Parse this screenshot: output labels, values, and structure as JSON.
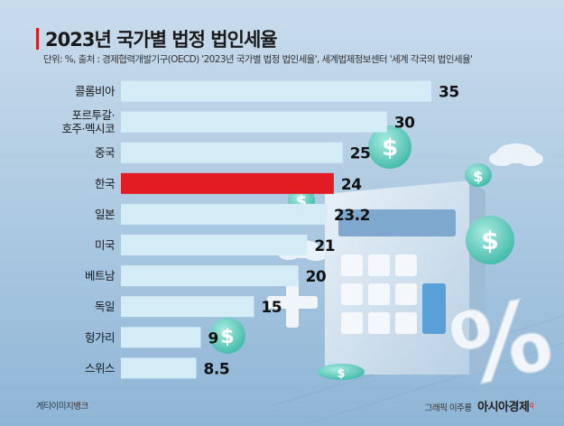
{
  "header": {
    "title": "2023년 국가별 법정 법인세율",
    "source": "단위: %, 출처 : 경제협력개발기구(OECD) '2023년 국가별 법정 법인세율', 세계법제정보센터 '세계 각국의 법인세율'"
  },
  "chart_data": {
    "type": "bar",
    "orientation": "horizontal",
    "title": "2023년 국가별 법정 법인세율",
    "unit": "%",
    "categories": [
      [
        "콜롬비아"
      ],
      [
        "포르투갈·",
        "호주·멕시코"
      ],
      [
        "중국"
      ],
      [
        "한국"
      ],
      [
        "일본"
      ],
      [
        "미국"
      ],
      [
        "베트남"
      ],
      [
        "독일"
      ],
      [
        "헝가리"
      ],
      [
        "스위스"
      ]
    ],
    "values": [
      35,
      30,
      25,
      24,
      23.2,
      21,
      20,
      15,
      9,
      8.5
    ],
    "value_labels": [
      "35",
      "30",
      "25",
      "24",
      "23.2",
      "21",
      "20",
      "15",
      "9",
      "8.5"
    ],
    "highlight_index": 3,
    "colors": {
      "bar": "#d4ecf5",
      "highlight": "#e31b23",
      "text": "#111111"
    },
    "xlim": [
      0,
      35
    ]
  },
  "footer": {
    "image_credit": "게티이미지뱅크",
    "graphic_credit": "그래픽 이주룡",
    "brand": "아시아경제",
    "brand_mark": "q"
  },
  "decor": {
    "dollar_symbol": "$",
    "percent_symbol": "%",
    "plus_symbol": "+"
  }
}
